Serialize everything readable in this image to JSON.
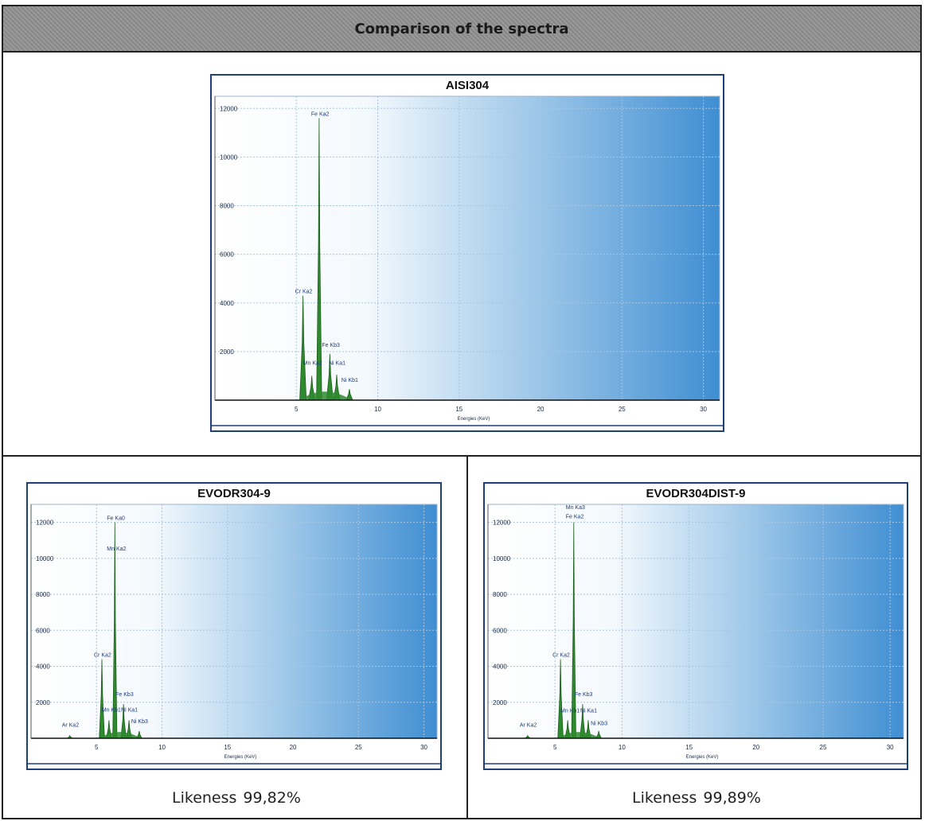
{
  "page": {
    "title": "Comparison of the spectra"
  },
  "chart_data": [
    {
      "type": "line",
      "title": "AISI304",
      "xlabel": "Energies (KeV)",
      "ylabel": "",
      "xlim": [
        0,
        31
      ],
      "ylim": [
        0,
        12500
      ],
      "xticks": [
        5,
        10,
        15,
        20,
        25,
        30
      ],
      "yticks": [
        2000,
        4000,
        6000,
        8000,
        10000,
        12000
      ],
      "grid": true,
      "series": [
        {
          "values": [
            {
              "x": 5.41,
              "y": 4300
            },
            {
              "x": 5.95,
              "y": 1000
            },
            {
              "x": 6.4,
              "y": 11600
            },
            {
              "x": 7.06,
              "y": 1900
            },
            {
              "x": 7.48,
              "y": 1050
            },
            {
              "x": 8.26,
              "y": 450
            }
          ]
        }
      ],
      "peak_labels": [
        {
          "text": "Fe Ka2",
          "x": 6.4,
          "y": 11600
        },
        {
          "text": "Cr Ka2",
          "x": 5.41,
          "y": 4300
        },
        {
          "text": "Fe Kb3",
          "x": 7.06,
          "y": 2100
        },
        {
          "text": "Mn Ka2",
          "x": 5.9,
          "y": 1350
        },
        {
          "text": "Ni Ka1",
          "x": 7.48,
          "y": 1350
        },
        {
          "text": "Ni Kb1",
          "x": 8.26,
          "y": 650
        }
      ]
    },
    {
      "type": "line",
      "title": "EVODR304-9",
      "xlabel": "Energies (KeV)",
      "ylabel": "",
      "xlim": [
        0,
        31
      ],
      "ylim": [
        0,
        13000
      ],
      "xticks": [
        5,
        10,
        15,
        20,
        25,
        30
      ],
      "yticks": [
        2000,
        4000,
        6000,
        8000,
        10000,
        12000
      ],
      "grid": true,
      "series": [
        {
          "values": [
            {
              "x": 2.96,
              "y": 150
            },
            {
              "x": 5.41,
              "y": 4400
            },
            {
              "x": 5.95,
              "y": 1000
            },
            {
              "x": 6.4,
              "y": 12000
            },
            {
              "x": 7.06,
              "y": 1900
            },
            {
              "x": 7.48,
              "y": 1000
            },
            {
              "x": 8.26,
              "y": 400
            }
          ]
        }
      ],
      "peak_labels": [
        {
          "text": "Fe Ka0",
          "x": 6.4,
          "y": 12000
        },
        {
          "text": "Mn Ka2",
          "x": 6.4,
          "y": 10300
        },
        {
          "text": "Cr Ka2",
          "x": 5.41,
          "y": 4400
        },
        {
          "text": "Fe Kb3",
          "x": 7.06,
          "y": 2200
        },
        {
          "text": "Mn Kb1",
          "x": 6.0,
          "y": 1350
        },
        {
          "text": "Ni Ka1",
          "x": 7.48,
          "y": 1350
        },
        {
          "text": "Ni Kb3",
          "x": 8.26,
          "y": 700
        },
        {
          "text": "Ar Ka2",
          "x": 2.96,
          "y": 500
        }
      ]
    },
    {
      "type": "line",
      "title": "EVODR304DIST-9",
      "xlabel": "Energies (KeV)",
      "ylabel": "",
      "xlim": [
        0,
        31
      ],
      "ylim": [
        0,
        13000
      ],
      "xticks": [
        5,
        10,
        15,
        20,
        25,
        30
      ],
      "yticks": [
        2000,
        4000,
        6000,
        8000,
        10000,
        12000
      ],
      "grid": true,
      "series": [
        {
          "values": [
            {
              "x": 2.96,
              "y": 150
            },
            {
              "x": 5.41,
              "y": 4400
            },
            {
              "x": 5.95,
              "y": 1000
            },
            {
              "x": 6.4,
              "y": 12000
            },
            {
              "x": 7.06,
              "y": 1900
            },
            {
              "x": 7.48,
              "y": 1000
            },
            {
              "x": 8.26,
              "y": 400
            }
          ]
        }
      ],
      "peak_labels": [
        {
          "text": "Mn Ka3",
          "x": 6.4,
          "y": 12600
        },
        {
          "text": "Fe Ka2",
          "x": 6.4,
          "y": 12100
        },
        {
          "text": "Cr Ka2",
          "x": 5.41,
          "y": 4400
        },
        {
          "text": "Fe Kb3",
          "x": 7.06,
          "y": 2200
        },
        {
          "text": "Mn Kb1",
          "x": 6.0,
          "y": 1300
        },
        {
          "text": "Ni Ka1",
          "x": 7.48,
          "y": 1300
        },
        {
          "text": "Ni Kb3",
          "x": 8.26,
          "y": 600
        },
        {
          "text": "Ar Ka2",
          "x": 2.96,
          "y": 500
        }
      ]
    }
  ],
  "likeness": [
    {
      "label": "Likeness",
      "value": "99,82%"
    },
    {
      "label": "Likeness",
      "value": "99,89%"
    }
  ]
}
